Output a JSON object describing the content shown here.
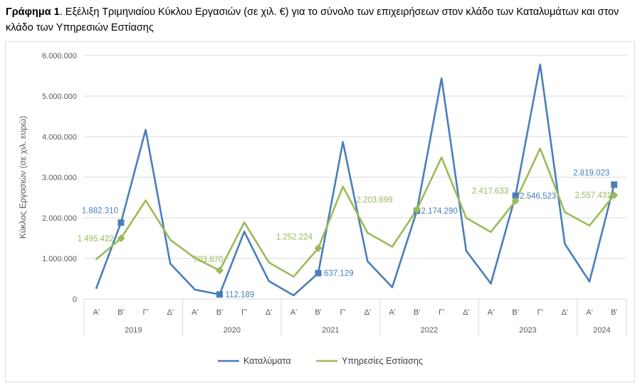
{
  "caption": {
    "prefix": "Γράφημα 1",
    "text": ". Εξέλιξη Τριμηνιαίου Κύκλου Εργασιών (σε χιλ. €) για το σύνολο των επιχειρήσεων στον κλάδο των Καταλυμάτων και στον κλάδο των Υπηρεσιών Εστίασης"
  },
  "chart_data": {
    "type": "line",
    "title": "Εξέλιξη Τριμηνιαίου Κύκλου Εργασιών (σε χιλ. €) για το σύνολο των επιχειρήσεων στον κλάδο των Καταλυμάτων και στον κλάδο των Υπηρεσιών Εστίασης",
    "ylabel": "Κύκλος Εργασιών (σε χιλ. ευρώ)",
    "ylim": [
      0,
      6000000
    ],
    "yticks": [
      "0",
      "1.000.000",
      "2.000.000",
      "3.000.000",
      "4.000.000",
      "5.000.000",
      "6.000.000"
    ],
    "grid": true,
    "legend": "bottom",
    "years": [
      {
        "label": "2019",
        "quarters": 4
      },
      {
        "label": "2020",
        "quarters": 4
      },
      {
        "label": "2021",
        "quarters": 4
      },
      {
        "label": "2022",
        "quarters": 4
      },
      {
        "label": "2023",
        "quarters": 4
      },
      {
        "label": "2024",
        "quarters": 2
      }
    ],
    "categories": [
      "Α'",
      "Β'",
      "Γ'",
      "Δ'",
      "Α'",
      "Β'",
      "Γ'",
      "Δ'",
      "Α'",
      "Β'",
      "Γ'",
      "Δ'",
      "Α'",
      "Β'",
      "Γ'",
      "Δ'",
      "Α'",
      "Β'",
      "Γ'",
      "Δ'",
      "Α'",
      "Β'"
    ],
    "series": [
      {
        "name": "Καταλύματα",
        "color": "#4a7ebb",
        "marker": "square",
        "values": [
          270000,
          1882310,
          4170000,
          870000,
          230000,
          112189,
          1660000,
          440000,
          90000,
          637129,
          3870000,
          930000,
          290000,
          2174290,
          5440000,
          1190000,
          380000,
          2546523,
          5780000,
          1360000,
          430000,
          2819023
        ],
        "labels": [
          {
            "index": 1,
            "text": "1.882.310"
          },
          {
            "index": 5,
            "text": "112.189"
          },
          {
            "index": 9,
            "text": "637.129"
          },
          {
            "index": 13,
            "text": "2.174.290"
          },
          {
            "index": 17,
            "text": "2.546.523"
          },
          {
            "index": 21,
            "text": "2.819.023"
          }
        ]
      },
      {
        "name": "Υπηρεσίες Εστίασης",
        "color": "#9bbb59",
        "marker": "diamond",
        "values": [
          980000,
          1495422,
          2430000,
          1460000,
          1010000,
          703870,
          1890000,
          900000,
          550000,
          1252224,
          2770000,
          1630000,
          1290000,
          2203699,
          3490000,
          2000000,
          1650000,
          2417633,
          3710000,
          2140000,
          1810000,
          2557431
        ],
        "labels": [
          {
            "index": 1,
            "text": "1.495.422"
          },
          {
            "index": 5,
            "text": "703.870"
          },
          {
            "index": 9,
            "text": "1.252.224"
          },
          {
            "index": 13,
            "text": "2.203.699"
          },
          {
            "index": 17,
            "text": "2.417.633"
          },
          {
            "index": 21,
            "text": "2.557.431"
          }
        ]
      }
    ]
  }
}
